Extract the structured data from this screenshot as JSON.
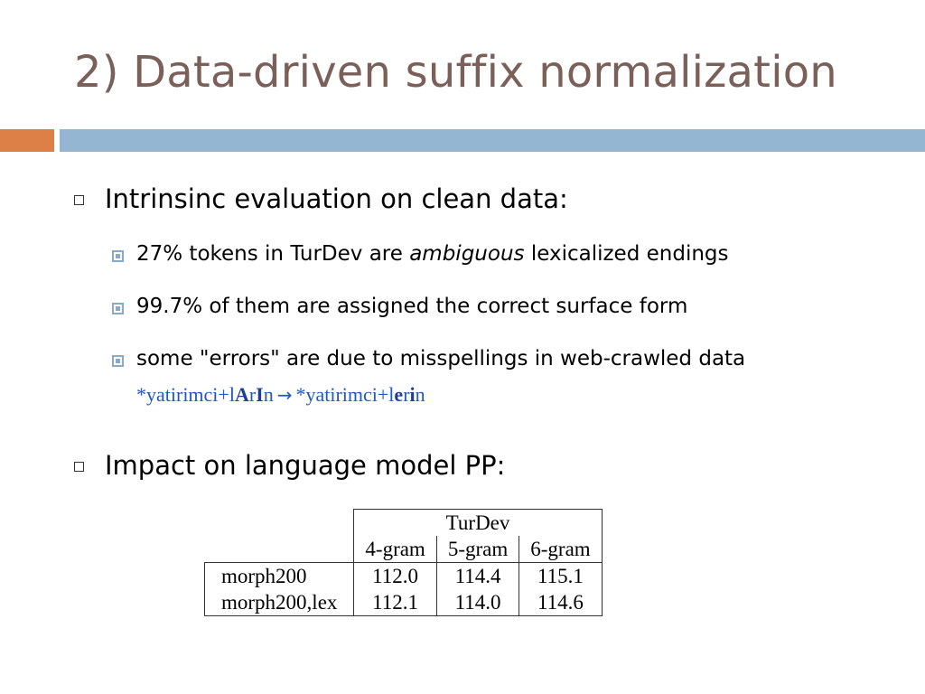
{
  "slide": {
    "title": "2) Data-driven suffix normalization",
    "bullets": [
      {
        "text": "Intrinsinc evaluation on clean data:",
        "sub": [
          {
            "pre": "27% tokens in TurDev are ",
            "em": "ambiguous",
            "post": " lexicalized endings"
          },
          {
            "text": "99.7% of them are assigned the correct surface form"
          },
          {
            "text": "some \"errors\" are due to misspellings in web-crawled data",
            "example": {
              "a1": "*yatirimci+l",
              "a2": "A",
              "a3": "r",
              "a4": "I",
              "a5": "n",
              "arrow": "→",
              "b1": "*yatirimci+l",
              "b2": "e",
              "b3": "r",
              "b4": "i",
              "b5": "n"
            }
          }
        ]
      },
      {
        "text": "Impact on language model PP:"
      }
    ]
  },
  "table": {
    "group_header": "TurDev",
    "columns": [
      "4-gram",
      "5-gram",
      "6-gram"
    ],
    "rows": [
      {
        "label": "morph200",
        "values": [
          "112.0",
          "114.4",
          "115.1"
        ]
      },
      {
        "label": "morph200,lex",
        "values": [
          "112.1",
          "114.0",
          "114.6"
        ]
      }
    ]
  },
  "colors": {
    "title": "#7a6058",
    "accent_orange": "#dd8047",
    "accent_blue": "#94b6d2",
    "example_text": "#1f57c3"
  }
}
